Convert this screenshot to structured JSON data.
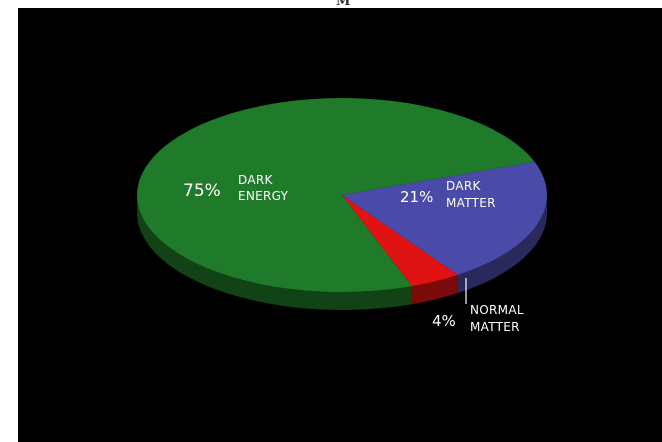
{
  "header": {
    "corner_mark": "M"
  },
  "colors": {
    "background": "#000000",
    "dark_energy": "#1f7a2a",
    "dark_matter": "#4a4aa8",
    "normal_matter": "#e01212"
  },
  "chart_data": {
    "type": "pie",
    "style": "3d-tilted",
    "title": "",
    "slices": [
      {
        "label": "DARK ENERGY",
        "value": 75,
        "value_text": "75%",
        "label_lines": [
          "DARK",
          "ENERGY"
        ],
        "color": "#1f7a2a"
      },
      {
        "label": "DARK MATTER",
        "value": 21,
        "value_text": "21%",
        "label_lines": [
          "DARK",
          "MATTER"
        ],
        "color": "#4a4aa8"
      },
      {
        "label": "NORMAL MATTER",
        "value": 4,
        "value_text": "4%",
        "label_lines": [
          "NORMAL",
          "MATTER"
        ],
        "color": "#e01212"
      }
    ]
  }
}
